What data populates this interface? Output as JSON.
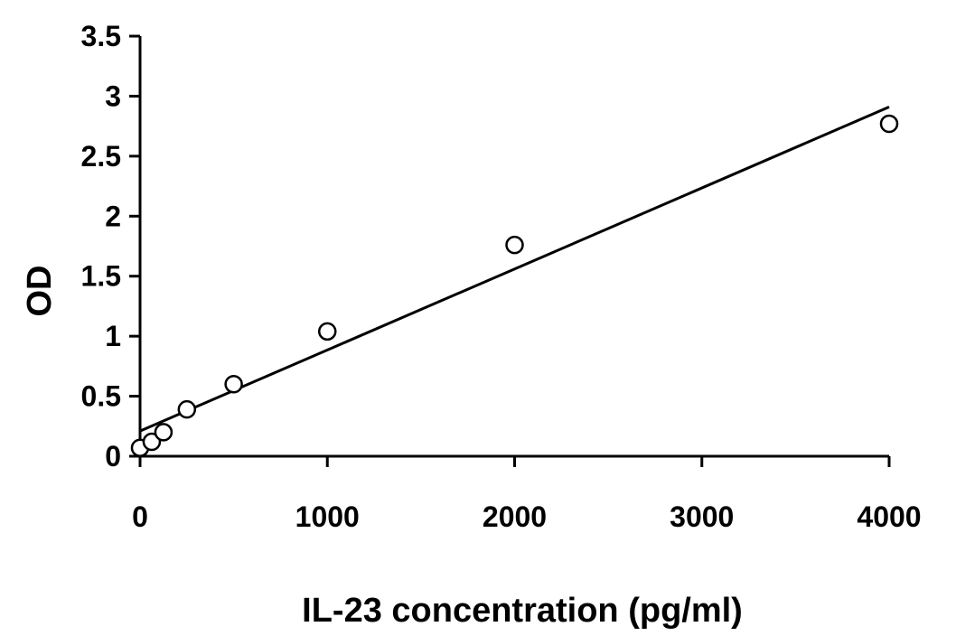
{
  "chart_data": {
    "type": "scatter",
    "title": "",
    "xlabel": "IL-23 concentration (pg/ml)",
    "ylabel": "OD",
    "xlim": [
      0,
      4000
    ],
    "ylim": [
      0,
      3.5
    ],
    "x_ticks": [
      "0",
      "1000",
      "2000",
      "3000",
      "4000"
    ],
    "y_ticks": [
      "0",
      "0.5",
      "1",
      "1.5",
      "2",
      "2.5",
      "3",
      "3.5"
    ],
    "grid": false,
    "series": [
      {
        "marker": "open-circle",
        "x": [
          0,
          62.5,
          125,
          250,
          500,
          1000,
          2000,
          4000
        ],
        "y": [
          0.07,
          0.12,
          0.2,
          0.39,
          0.6,
          1.04,
          1.76,
          2.77
        ]
      }
    ],
    "trendline": {
      "type": "linear",
      "x": [
        0,
        4000
      ],
      "y": [
        0.21,
        2.91
      ]
    },
    "colors": {
      "axis": "#000000",
      "marker_fill": "#ffffff",
      "marker_stroke": "#000000",
      "line": "#000000"
    }
  }
}
